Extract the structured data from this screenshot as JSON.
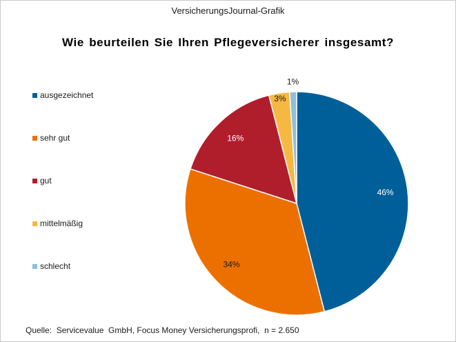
{
  "header": {
    "text": "VersicherungsJournal-Grafik"
  },
  "footer": {
    "source": "Quelle:  Servicevalue  GmbH, Focus Money Versicherungsprofi,  n = 2.650"
  },
  "chart_data": {
    "type": "pie",
    "title": "Wie beurteilen Sie Ihren Pflegeversicherer  insgesamt?",
    "legend_position": "left",
    "unit": "%",
    "slices": [
      {
        "label": "ausgezeichnet",
        "value": 46,
        "value_label": "46%",
        "color": "#005f99",
        "label_color": "#ffffff"
      },
      {
        "label": "sehr gut",
        "value": 34,
        "value_label": "34%",
        "color": "#ec7000",
        "label_color": "#1a1a1a"
      },
      {
        "label": "gut",
        "value": 16,
        "value_label": "16%",
        "color": "#b01e2c",
        "label_color": "#ffffff"
      },
      {
        "label": "mittelmäßig",
        "value": 3,
        "value_label": "3%",
        "color": "#f7b843",
        "label_color": "#1a1a1a"
      },
      {
        "label": "schlecht",
        "value": 1,
        "value_label": "1%",
        "color": "#8fbfda",
        "label_color": "#1a1a1a"
      }
    ]
  }
}
